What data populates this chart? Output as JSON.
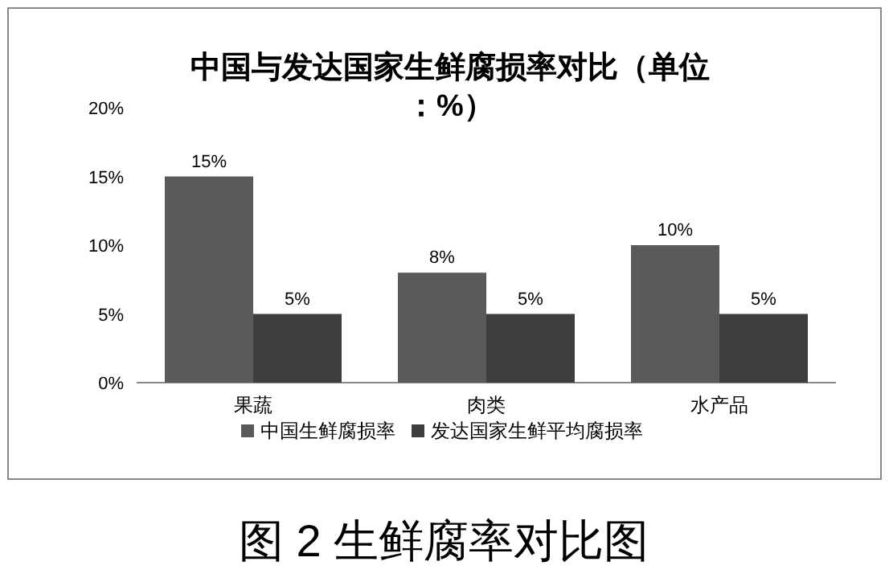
{
  "chart_data": {
    "type": "bar",
    "title": "中国与发达国家生鲜腐损率对比（单位：%）",
    "categories": [
      "果蔬",
      "肉类",
      "水产品"
    ],
    "series": [
      {
        "name": "中国生鲜腐损率",
        "color": "#5a5a5a",
        "values": [
          15,
          8,
          10
        ],
        "value_labels": [
          "15%",
          "8%",
          "10%"
        ]
      },
      {
        "name": "发达国家生鲜平均腐损率",
        "color": "#3e3e3e",
        "values": [
          5,
          5,
          5
        ],
        "value_labels": [
          "5%",
          "5%",
          "5%"
        ]
      }
    ],
    "ylim": [
      0,
      20
    ],
    "yticks": [
      {
        "value": 0,
        "label": "0%"
      },
      {
        "value": 5,
        "label": "5%"
      },
      {
        "value": 10,
        "label": "10%"
      },
      {
        "value": 15,
        "label": "15%"
      },
      {
        "value": 20,
        "label": "20%"
      }
    ],
    "grid": false,
    "legend": "bottom",
    "annotations": [
      "图 2 生鲜腐率对比图"
    ]
  }
}
